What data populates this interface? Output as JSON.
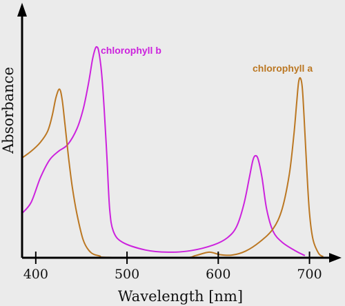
{
  "chart_data": {
    "type": "line",
    "title": "",
    "xlabel": "Wavelength [nm]",
    "ylabel": "Absorbance",
    "xlim": [
      385,
      720
    ],
    "ylim": [
      0,
      1
    ],
    "x_ticks": [
      400,
      500,
      600,
      700
    ],
    "x_tick_labels": [
      "400",
      "500",
      "600",
      "700"
    ],
    "y_ticks": [],
    "grid": false,
    "legend": "inline labels",
    "series": [
      {
        "name": "chlorophyll b",
        "color": "#cc22dd",
        "points": [
          [
            385,
            0.2
          ],
          [
            395,
            0.25
          ],
          [
            405,
            0.36
          ],
          [
            415,
            0.44
          ],
          [
            425,
            0.48
          ],
          [
            435,
            0.51
          ],
          [
            445,
            0.58
          ],
          [
            452,
            0.67
          ],
          [
            458,
            0.79
          ],
          [
            462,
            0.89
          ],
          [
            465,
            0.94
          ],
          [
            467,
            0.95
          ],
          [
            469,
            0.93
          ],
          [
            472,
            0.84
          ],
          [
            475,
            0.67
          ],
          [
            478,
            0.45
          ],
          [
            481,
            0.22
          ],
          [
            485,
            0.12
          ],
          [
            495,
            0.07
          ],
          [
            520,
            0.035
          ],
          [
            545,
            0.025
          ],
          [
            570,
            0.032
          ],
          [
            595,
            0.058
          ],
          [
            610,
            0.09
          ],
          [
            620,
            0.14
          ],
          [
            628,
            0.24
          ],
          [
            634,
            0.36
          ],
          [
            638,
            0.44
          ],
          [
            641,
            0.46
          ],
          [
            644,
            0.44
          ],
          [
            648,
            0.36
          ],
          [
            653,
            0.22
          ],
          [
            660,
            0.12
          ],
          [
            670,
            0.07
          ],
          [
            685,
            0.03
          ],
          [
            695,
            0.01
          ]
        ]
      },
      {
        "name": "chlorophyll a",
        "color": "#bb7722",
        "points": [
          [
            385,
            0.45
          ],
          [
            395,
            0.48
          ],
          [
            405,
            0.52
          ],
          [
            413,
            0.57
          ],
          [
            418,
            0.64
          ],
          [
            422,
            0.72
          ],
          [
            426,
            0.76
          ],
          [
            429,
            0.71
          ],
          [
            432,
            0.6
          ],
          [
            436,
            0.45
          ],
          [
            440,
            0.32
          ],
          [
            445,
            0.2
          ],
          [
            452,
            0.08
          ],
          [
            460,
            0.025
          ],
          [
            470,
            0.008
          ],
          [
            480,
            0.002
          ],
          [
            560,
            0.0
          ],
          [
            575,
            0.01
          ],
          [
            590,
            0.025
          ],
          [
            602,
            0.014
          ],
          [
            615,
            0.012
          ],
          [
            630,
            0.03
          ],
          [
            645,
            0.07
          ],
          [
            660,
            0.13
          ],
          [
            670,
            0.22
          ],
          [
            678,
            0.38
          ],
          [
            683,
            0.56
          ],
          [
            686,
            0.7
          ],
          [
            688,
            0.79
          ],
          [
            690,
            0.81
          ],
          [
            692,
            0.77
          ],
          [
            694,
            0.64
          ],
          [
            697,
            0.4
          ],
          [
            700,
            0.2
          ],
          [
            704,
            0.08
          ],
          [
            710,
            0.02
          ],
          [
            715,
            0.005
          ]
        ]
      }
    ]
  }
}
